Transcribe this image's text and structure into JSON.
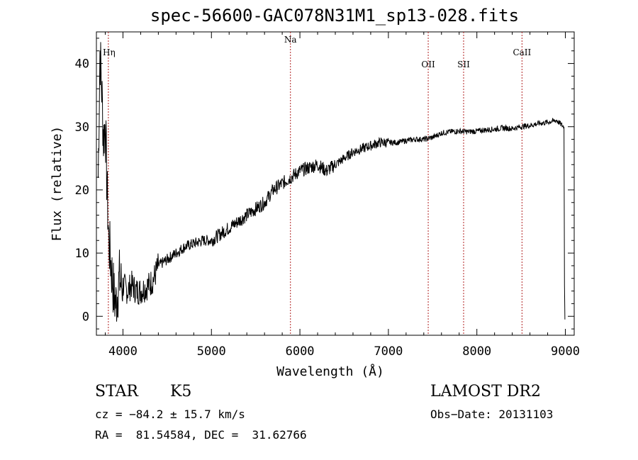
{
  "chart_data": {
    "type": "line",
    "title": "spec-56600-GAC078N31M1_sp13-028.fits",
    "xlabel": "Wavelength (Å)",
    "ylabel": "Flux (relative)",
    "xlim": [
      3700,
      9100
    ],
    "ylim": [
      -3,
      45
    ],
    "xticks": [
      "4000",
      "5000",
      "6000",
      "7000",
      "8000",
      "9000"
    ],
    "yticks": [
      "0",
      "10",
      "20",
      "30",
      "40"
    ],
    "grid": false,
    "series": [
      {
        "x": [
          3720,
          3740,
          3760,
          3780,
          3800,
          3820,
          3840,
          3860,
          3880,
          3900,
          3920,
          3940,
          3960,
          3980,
          4000,
          4050,
          4100,
          4150,
          4200,
          4250,
          4300,
          4350,
          4400,
          4500,
          4600,
          4700,
          4800,
          4900,
          5000,
          5100,
          5200,
          5300,
          5400,
          5500,
          5600,
          5700,
          5800,
          5900,
          6000,
          6100,
          6200,
          6300,
          6400,
          6500,
          6600,
          6700,
          6800,
          6900,
          7000,
          7100,
          7200,
          7300,
          7400,
          7500,
          7600,
          7700,
          7800,
          7900,
          8000,
          8100,
          8200,
          8300,
          8400,
          8500,
          8600,
          8700,
          8800,
          8900,
          8980
        ],
        "y": [
          22,
          42,
          36,
          28,
          31,
          20,
          12,
          9,
          6,
          3,
          2,
          4,
          6,
          5,
          5,
          4,
          5,
          4,
          4,
          4.5,
          5,
          6,
          8,
          9,
          10,
          11,
          11.5,
          12,
          12,
          13,
          14,
          15,
          16,
          17,
          18,
          20,
          21,
          22,
          23,
          23.5,
          24,
          23,
          24,
          25,
          26,
          26.5,
          27,
          27.5,
          27.5,
          27.5,
          27.8,
          28,
          28,
          28.3,
          29,
          29.2,
          29.3,
          29.2,
          29.3,
          29.5,
          29.6,
          29.8,
          29.7,
          30,
          30.2,
          30.5,
          30.7,
          31,
          30
        ]
      }
    ],
    "lines": [
      {
        "label": "Hη",
        "x": 3835
      },
      {
        "label": "Na",
        "x": 5893
      },
      {
        "label": "OII",
        "x": 7450
      },
      {
        "label": "SII",
        "x": 7850
      },
      {
        "label": "CaII",
        "x": 8510
      }
    ]
  },
  "info": {
    "class": "STAR",
    "subclass": "K5",
    "survey": "LAMOST DR2",
    "cz": "cz = −84.2 ± 15.7 km/s",
    "obs_date": "Obs−Date: 20131103",
    "radec": "RA =  81.54584, DEC =  31.62766"
  }
}
